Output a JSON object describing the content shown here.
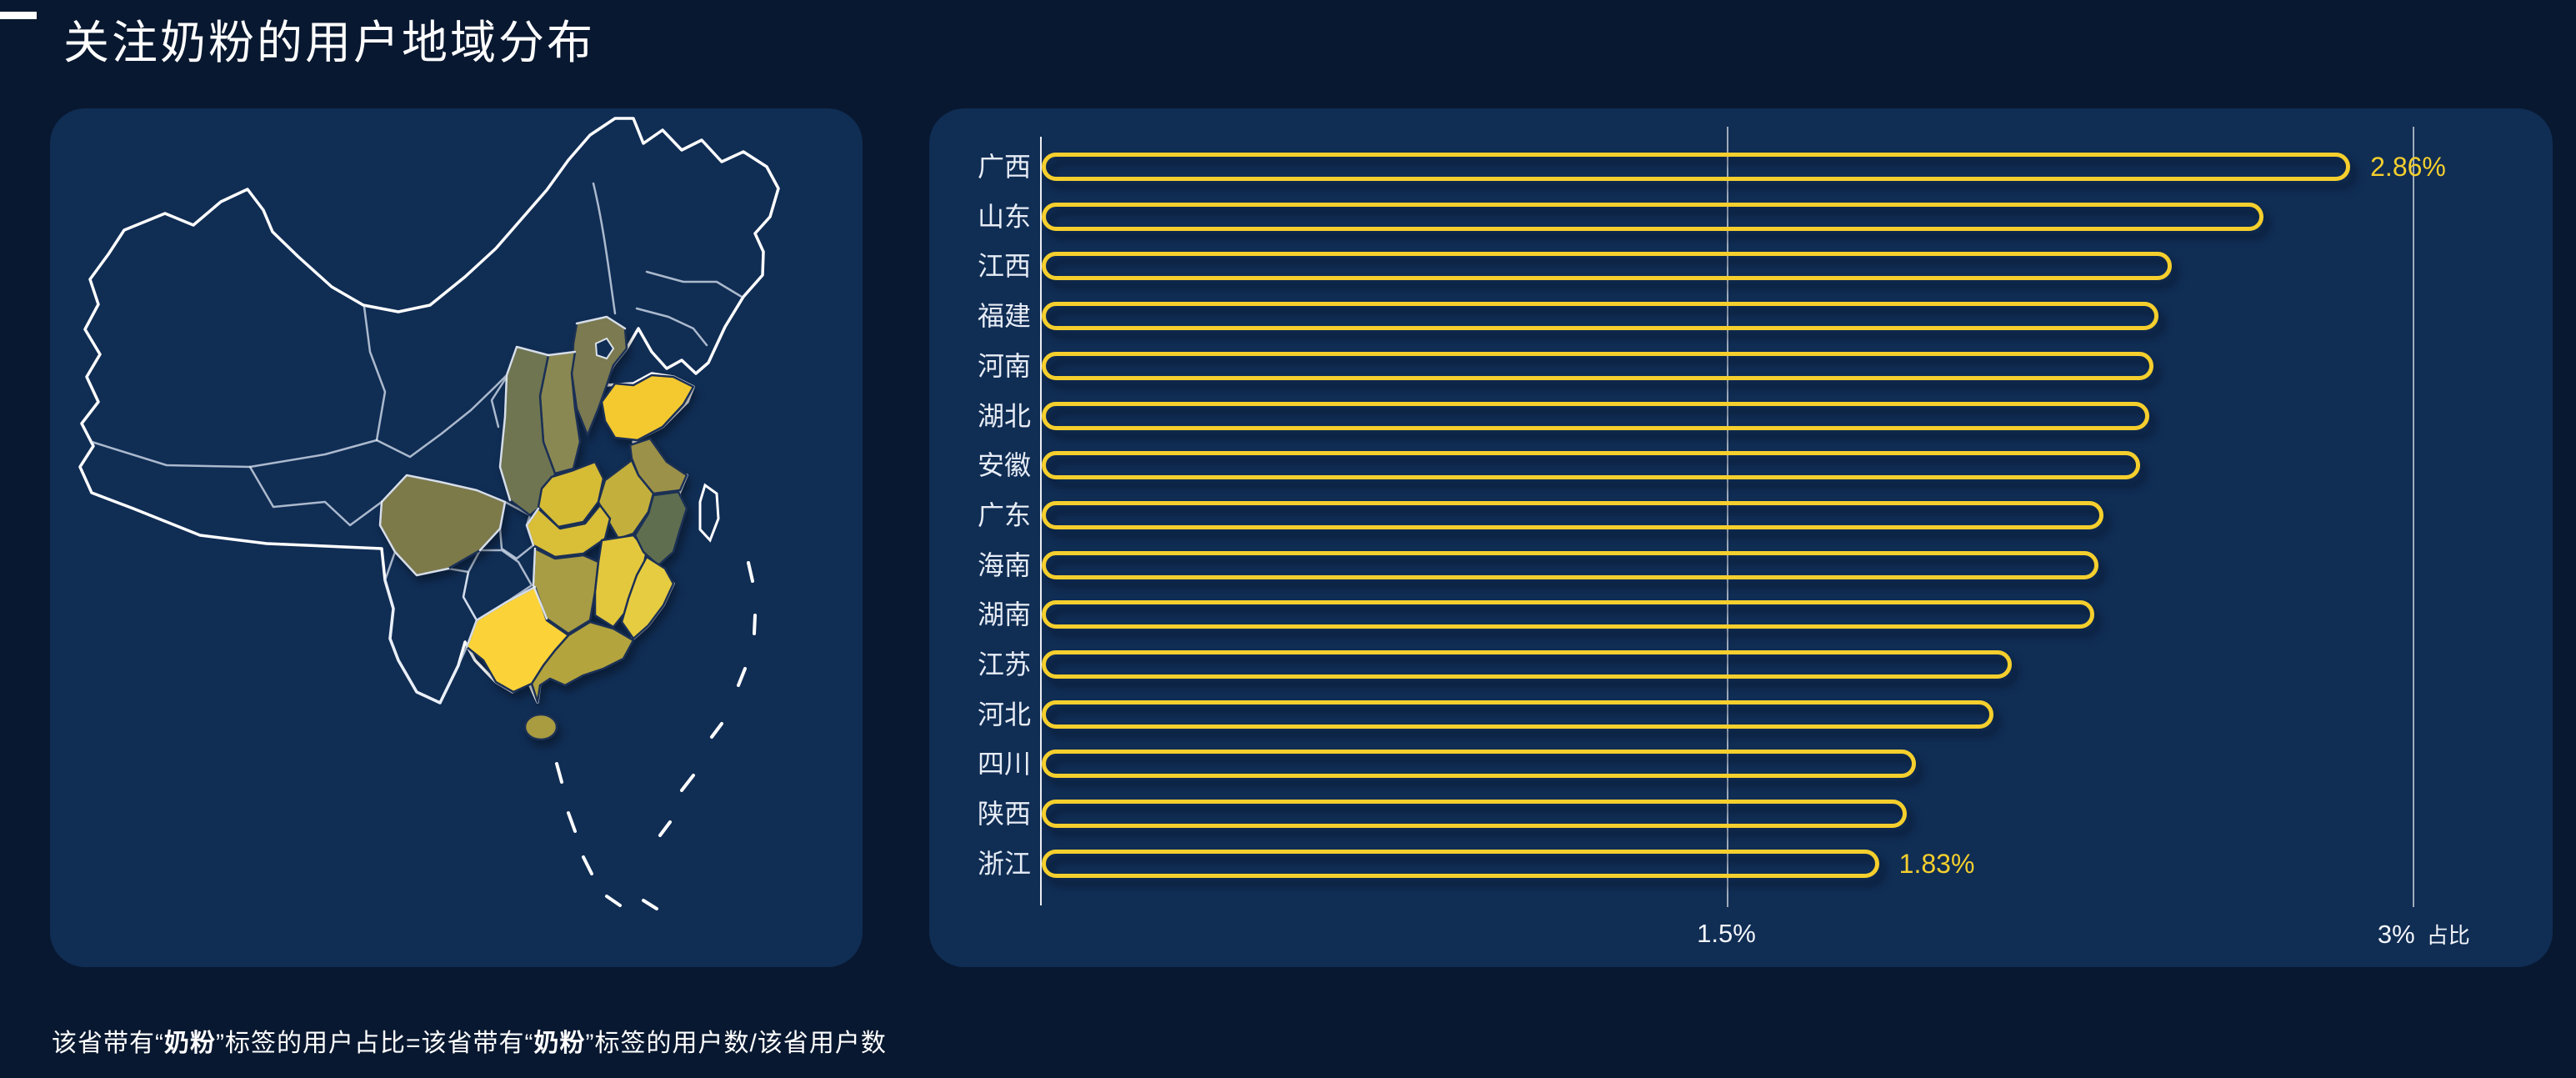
{
  "page": {
    "background_color": "#081830",
    "panel_color": "#102D54",
    "accent_yellow": "#F5CF2D"
  },
  "header": {
    "title": "关注奶粉的用户地域分布"
  },
  "chart_data": {
    "type": "bar",
    "orientation": "horizontal",
    "title": "",
    "xlabel_unit": "占比",
    "xlim": [
      0,
      3
    ],
    "grid": "vertical lines at 1.5% and 3%",
    "legend": "none",
    "bar_style": "yellow outlined pill, hollow",
    "categories": [
      "广西",
      "山东",
      "江西",
      "福建",
      "河南",
      "湖北",
      "安徽",
      "广东",
      "海南",
      "湖南",
      "江苏",
      "河北",
      "四川",
      "陕西",
      "浙江"
    ],
    "values": [
      2.86,
      2.67,
      2.47,
      2.44,
      2.43,
      2.42,
      2.4,
      2.32,
      2.31,
      2.3,
      2.12,
      2.08,
      1.91,
      1.89,
      1.83
    ],
    "value_labels": [
      "2.86%",
      null,
      null,
      null,
      null,
      null,
      null,
      null,
      null,
      null,
      null,
      null,
      null,
      null,
      "1.83%"
    ],
    "axis_ticks": [
      {
        "label": "1.5%",
        "value": 1.5
      },
      {
        "label": "3%",
        "value": 3.0
      }
    ],
    "unit_label": "占比",
    "bar_color": "#F5CF2D",
    "label_color": "#E7EDF6"
  },
  "map": {
    "description": "China map, provinces shaded by 占比 (brighter yellow = higher share); western and northern provinces unshaded with white outlines; nine-dash line in South China Sea; Taiwan outlined",
    "outline_color": "#FFFFFF",
    "regions": [
      {
        "key": "guangxi",
        "name": "广西",
        "color": "#FBD338"
      },
      {
        "key": "shandong",
        "name": "山东",
        "color": "#F4C930"
      },
      {
        "key": "jiangxi",
        "name": "江西",
        "color": "#E3C83D"
      },
      {
        "key": "fujian",
        "name": "福建",
        "color": "#E6CC40"
      },
      {
        "key": "henan",
        "name": "河南",
        "color": "#D6BB35"
      },
      {
        "key": "hubei",
        "name": "湖北",
        "color": "#D9BE37"
      },
      {
        "key": "anhui",
        "name": "安徽",
        "color": "#C3AF3B"
      },
      {
        "key": "guangdong",
        "name": "广东",
        "color": "#B3A43E"
      },
      {
        "key": "hainan",
        "name": "海南",
        "color": "#A89B40"
      },
      {
        "key": "hunan",
        "name": "湖南",
        "color": "#A89C44"
      },
      {
        "key": "jiangsu",
        "name": "江苏",
        "color": "#9C9148"
      },
      {
        "key": "hebei",
        "name": "河北",
        "color": "#7B7A50"
      },
      {
        "key": "sichuan",
        "name": "四川",
        "color": "#7D7A4A"
      },
      {
        "key": "shaanxi",
        "name": "陕西",
        "color": "#6E7550"
      },
      {
        "key": "zhejiang",
        "name": "浙江",
        "color": "#5F6E4E"
      },
      {
        "key": "shanxi",
        "name": "山西",
        "color": "#8A8852"
      }
    ]
  },
  "footnote": {
    "segments": [
      {
        "text": "该省带有“",
        "bold": false
      },
      {
        "text": "奶粉",
        "bold": true
      },
      {
        "text": "”标签的用户占比=该省带有“",
        "bold": false
      },
      {
        "text": "奶粉",
        "bold": true
      },
      {
        "text": "”标签的用户数/该省用户数",
        "bold": false
      }
    ]
  }
}
